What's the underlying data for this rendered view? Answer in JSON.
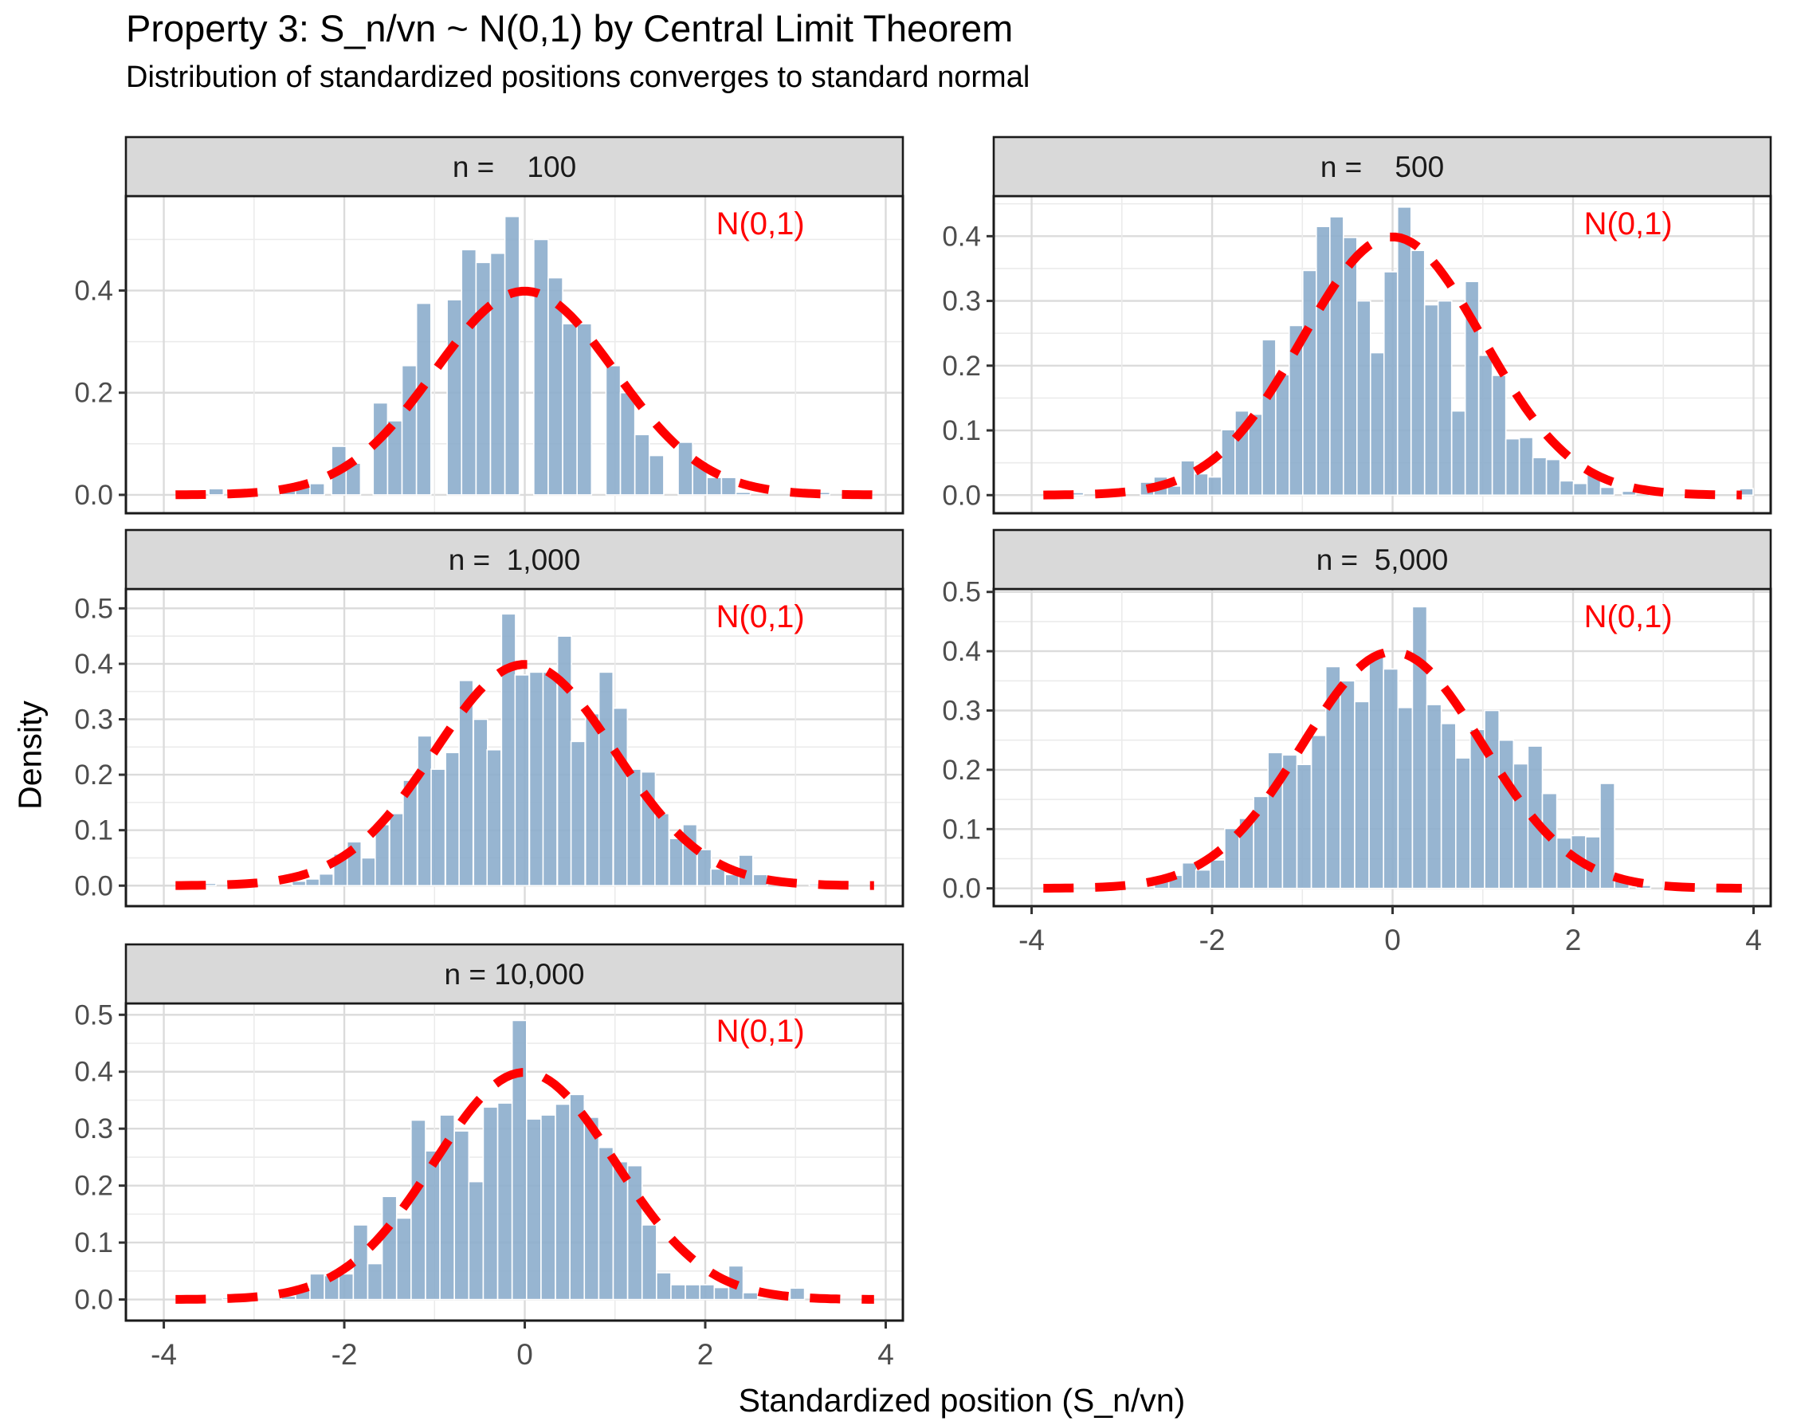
{
  "title": "Property 3: S_n/vn ~ N(0,1) by Central Limit Theorem",
  "subtitle": "Distribution of standardized positions converges to standard normal",
  "x_axis": {
    "title": "Standardized position (S_n/vn)",
    "tick_labels": [
      "-4",
      "-2",
      "0",
      "2",
      "4"
    ],
    "tick_values": [
      -4,
      -2,
      0,
      2,
      4
    ]
  },
  "y_axis": {
    "title": "Density"
  },
  "annotation": {
    "text": "N(0,1)",
    "color": "#FF0000"
  },
  "style": {
    "bar_fill": "#8CADCC",
    "bar_stroke": "#FFFFFF",
    "curve_color": "#FF0000",
    "strip_bg": "#D9D9D9",
    "strip_text": "#1A1A1A",
    "panel_border": "#1A1A1A",
    "grid_major": "#DBDBDB",
    "grid_minor": "#EBEBEB",
    "tick_label_color": "#4D4D4D",
    "panel_bg": "#FFFFFF"
  },
  "chart_data": {
    "type": "bar",
    "subtype": "faceted histograms of standardized positions with dashed standard-normal density overlay",
    "x_label": "Standardized position (S_n/vn)",
    "y_label": "Density",
    "xlim": [
      -4.42,
      4.19
    ],
    "x_ticks": [
      -4,
      -2,
      0,
      2,
      4
    ],
    "grid": true,
    "overlay_curve": "N(0,1) standard normal pdf, red dashed line, domain -3.87 to 3.87, peak 0.3989",
    "legend_position": "none (red N(0,1) text annotation in top-right of each panel)",
    "facets": [
      {
        "label": "n =    100",
        "n": 100,
        "bin_width": 0.16,
        "ylim": [
          -0.036,
          0.585
        ],
        "y_ticks": [
          0,
          0.2,
          0.4
        ],
        "bars": [
          [
            -3.42,
            0.012
          ],
          [
            -3.06,
            0.004
          ],
          [
            -2.62,
            0.014
          ],
          [
            -2.46,
            0.022
          ],
          [
            -2.3,
            0.022
          ],
          [
            -2.06,
            0.095
          ],
          [
            -1.9,
            0.062
          ],
          [
            -1.6,
            0.18
          ],
          [
            -1.44,
            0.145
          ],
          [
            -1.28,
            0.253
          ],
          [
            -1.12,
            0.375
          ],
          [
            -0.78,
            0.382
          ],
          [
            -0.62,
            0.48
          ],
          [
            -0.46,
            0.455
          ],
          [
            -0.3,
            0.473
          ],
          [
            -0.14,
            0.545
          ],
          [
            0.18,
            0.5
          ],
          [
            0.34,
            0.425
          ],
          [
            0.5,
            0.335
          ],
          [
            0.66,
            0.335
          ],
          [
            0.98,
            0.253
          ],
          [
            1.14,
            0.2
          ],
          [
            1.3,
            0.118
          ],
          [
            1.46,
            0.077
          ],
          [
            1.78,
            0.103
          ],
          [
            1.94,
            0.065
          ],
          [
            2.1,
            0.034
          ],
          [
            2.26,
            0.034
          ],
          [
            2.42,
            0.005
          ],
          [
            3.3,
            0.005
          ]
        ]
      },
      {
        "label": "n =    500",
        "n": 500,
        "bin_width": 0.15,
        "ylim": [
          -0.028,
          0.462
        ],
        "y_ticks": [
          0,
          0.1,
          0.2,
          0.3,
          0.4
        ],
        "bars": [
          [
            -3.5,
            0.004
          ],
          [
            -3.1,
            0.003
          ],
          [
            -2.72,
            0.02
          ],
          [
            -2.57,
            0.028
          ],
          [
            -2.42,
            0.014
          ],
          [
            -2.27,
            0.053
          ],
          [
            -2.12,
            0.033
          ],
          [
            -1.97,
            0.028
          ],
          [
            -1.82,
            0.101
          ],
          [
            -1.67,
            0.13
          ],
          [
            -1.52,
            0.125
          ],
          [
            -1.37,
            0.24
          ],
          [
            -1.22,
            0.186
          ],
          [
            -1.07,
            0.262
          ],
          [
            -0.92,
            0.347
          ],
          [
            -0.77,
            0.415
          ],
          [
            -0.62,
            0.43
          ],
          [
            -0.47,
            0.398
          ],
          [
            -0.32,
            0.3
          ],
          [
            -0.17,
            0.22
          ],
          [
            -0.02,
            0.345
          ],
          [
            0.13,
            0.445
          ],
          [
            0.28,
            0.378
          ],
          [
            0.43,
            0.294
          ],
          [
            0.58,
            0.3
          ],
          [
            0.73,
            0.13
          ],
          [
            0.88,
            0.33
          ],
          [
            1.03,
            0.216
          ],
          [
            1.18,
            0.185
          ],
          [
            1.33,
            0.087
          ],
          [
            1.48,
            0.089
          ],
          [
            1.63,
            0.058
          ],
          [
            1.78,
            0.055
          ],
          [
            1.93,
            0.022
          ],
          [
            2.08,
            0.018
          ],
          [
            2.23,
            0.035
          ],
          [
            2.38,
            0.012
          ],
          [
            2.62,
            0.006
          ],
          [
            2.92,
            0.004
          ],
          [
            3.42,
            0.003
          ],
          [
            3.92,
            0.01
          ]
        ]
      },
      {
        "label": "n =  1,000",
        "n": 1000,
        "bin_width": 0.155,
        "ylim": [
          -0.037,
          0.535
        ],
        "y_ticks": [
          0,
          0.1,
          0.2,
          0.3,
          0.4,
          0.5
        ],
        "bars": [
          [
            -3.5,
            0.004
          ],
          [
            -2.5,
            0.008
          ],
          [
            -2.35,
            0.012
          ],
          [
            -2.2,
            0.021
          ],
          [
            -2.04,
            0.057
          ],
          [
            -1.89,
            0.079
          ],
          [
            -1.73,
            0.05
          ],
          [
            -1.58,
            0.11
          ],
          [
            -1.42,
            0.13
          ],
          [
            -1.27,
            0.19
          ],
          [
            -1.11,
            0.27
          ],
          [
            -0.96,
            0.21
          ],
          [
            -0.8,
            0.24
          ],
          [
            -0.65,
            0.37
          ],
          [
            -0.49,
            0.3
          ],
          [
            -0.34,
            0.245
          ],
          [
            -0.18,
            0.49
          ],
          [
            -0.03,
            0.38
          ],
          [
            0.13,
            0.385
          ],
          [
            0.28,
            0.385
          ],
          [
            0.44,
            0.45
          ],
          [
            0.59,
            0.26
          ],
          [
            0.75,
            0.31
          ],
          [
            0.9,
            0.385
          ],
          [
            1.06,
            0.32
          ],
          [
            1.21,
            0.21
          ],
          [
            1.37,
            0.205
          ],
          [
            1.52,
            0.13
          ],
          [
            1.68,
            0.085
          ],
          [
            1.83,
            0.11
          ],
          [
            1.99,
            0.065
          ],
          [
            2.14,
            0.03
          ],
          [
            2.3,
            0.02
          ],
          [
            2.45,
            0.055
          ],
          [
            2.61,
            0.02
          ],
          [
            2.92,
            0.008
          ],
          [
            3.23,
            0.003
          ]
        ]
      },
      {
        "label": "n =  5,000",
        "n": 5000,
        "bin_width": 0.16,
        "ylim": [
          -0.03,
          0.505
        ],
        "y_ticks": [
          0,
          0.1,
          0.2,
          0.3,
          0.4,
          0.5
        ],
        "bars": [
          [
            -3.1,
            0.003
          ],
          [
            -2.56,
            0.017
          ],
          [
            -2.4,
            0.022
          ],
          [
            -2.25,
            0.043
          ],
          [
            -2.1,
            0.031
          ],
          [
            -1.94,
            0.048
          ],
          [
            -1.78,
            0.101
          ],
          [
            -1.62,
            0.118
          ],
          [
            -1.46,
            0.155
          ],
          [
            -1.3,
            0.229
          ],
          [
            -1.14,
            0.225
          ],
          [
            -0.98,
            0.209
          ],
          [
            -0.82,
            0.258
          ],
          [
            -0.66,
            0.374
          ],
          [
            -0.5,
            0.35
          ],
          [
            -0.34,
            0.315
          ],
          [
            -0.18,
            0.39
          ],
          [
            -0.02,
            0.37
          ],
          [
            0.14,
            0.305
          ],
          [
            0.3,
            0.475
          ],
          [
            0.46,
            0.31
          ],
          [
            0.62,
            0.278
          ],
          [
            0.78,
            0.22
          ],
          [
            0.94,
            0.268
          ],
          [
            1.1,
            0.3
          ],
          [
            1.26,
            0.25
          ],
          [
            1.42,
            0.21
          ],
          [
            1.58,
            0.24
          ],
          [
            1.74,
            0.16
          ],
          [
            1.9,
            0.085
          ],
          [
            2.06,
            0.089
          ],
          [
            2.22,
            0.087
          ],
          [
            2.38,
            0.177
          ],
          [
            2.54,
            0.012
          ],
          [
            2.78,
            0.005
          ]
        ]
      },
      {
        "label": "n = 10,000",
        "n": 10000,
        "bin_width": 0.16,
        "ylim": [
          -0.037,
          0.52
        ],
        "y_ticks": [
          0,
          0.1,
          0.2,
          0.3,
          0.4,
          0.5
        ],
        "bars": [
          [
            -3.27,
            0.003
          ],
          [
            -2.62,
            0.006
          ],
          [
            -2.46,
            0.021
          ],
          [
            -2.3,
            0.045
          ],
          [
            -2.14,
            0.042
          ],
          [
            -1.98,
            0.045
          ],
          [
            -1.82,
            0.131
          ],
          [
            -1.66,
            0.063
          ],
          [
            -1.5,
            0.181
          ],
          [
            -1.34,
            0.143
          ],
          [
            -1.18,
            0.315
          ],
          [
            -1.02,
            0.261
          ],
          [
            -0.86,
            0.324
          ],
          [
            -0.7,
            0.296
          ],
          [
            -0.54,
            0.207
          ],
          [
            -0.38,
            0.338
          ],
          [
            -0.22,
            0.345
          ],
          [
            -0.06,
            0.49
          ],
          [
            0.1,
            0.317
          ],
          [
            0.26,
            0.324
          ],
          [
            0.42,
            0.343
          ],
          [
            0.58,
            0.36
          ],
          [
            0.74,
            0.32
          ],
          [
            0.9,
            0.267
          ],
          [
            1.06,
            0.242
          ],
          [
            1.22,
            0.235
          ],
          [
            1.38,
            0.131
          ],
          [
            1.54,
            0.047
          ],
          [
            1.7,
            0.026
          ],
          [
            1.86,
            0.026
          ],
          [
            2.02,
            0.026
          ],
          [
            2.18,
            0.021
          ],
          [
            2.34,
            0.059
          ],
          [
            2.5,
            0.012
          ],
          [
            3.02,
            0.02
          ]
        ]
      }
    ]
  }
}
